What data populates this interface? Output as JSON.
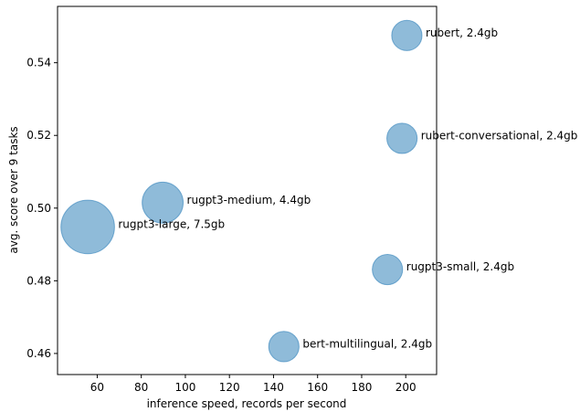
{
  "chart_data": {
    "type": "scatter",
    "title": "",
    "xlabel": "inference speed, records per second",
    "ylabel": "avg. score over 9 tasks",
    "xlim": [
      42,
      214
    ],
    "ylim": [
      0.4542,
      0.5555
    ],
    "x_ticks": [
      60,
      80,
      100,
      120,
      140,
      160,
      180,
      200
    ],
    "y_ticks": [
      0.46,
      0.48,
      0.5,
      0.52,
      0.54
    ],
    "grid": false,
    "point_color": "#1f77b4",
    "point_alpha": 0.5,
    "points": [
      {
        "label": "rubert, 2.4gb",
        "x": 200.5,
        "y": 0.5475,
        "size_gb": 2.4
      },
      {
        "label": "rubert-conversational, 2.4gb",
        "x": 198.3,
        "y": 0.5192,
        "size_gb": 2.4
      },
      {
        "label": "rugpt3-medium, 4.4gb",
        "x": 89.7,
        "y": 0.5015,
        "size_gb": 4.4
      },
      {
        "label": "rugpt3-large, 7.5gb",
        "x": 55.7,
        "y": 0.4948,
        "size_gb": 7.5
      },
      {
        "label": "rugpt3-small, 2.4gb",
        "x": 191.7,
        "y": 0.4831,
        "size_gb": 2.4
      },
      {
        "label": "bert-multilingual, 2.4gb",
        "x": 144.7,
        "y": 0.4619,
        "size_gb": 2.4
      }
    ]
  }
}
